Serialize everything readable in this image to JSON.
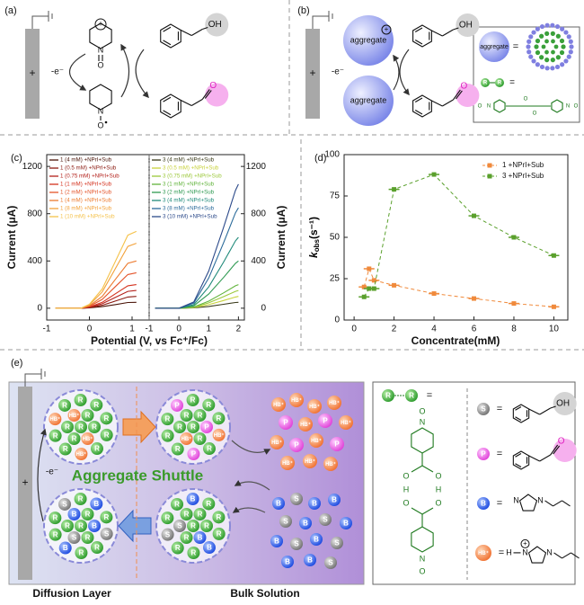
{
  "panel_a": {
    "label": "(a)",
    "plus": "+",
    "electron": "-e⁻",
    "n": "N",
    "o": "O",
    "charge": "+",
    "oh": "OH",
    "aldehyde_o": "O"
  },
  "panel_b": {
    "label": "(b)",
    "plus": "+",
    "electron": "-e⁻",
    "aggregate": "aggregate",
    "charge": "+",
    "oh": "OH",
    "aldehyde_o": "O",
    "equals": "=",
    "r": "R",
    "n": "N",
    "o": "O"
  },
  "chart_data": [
    {
      "type": "line",
      "label": "(c)",
      "xlabel": "Potential (V, vs Fc⁺/Fc)",
      "ylabel": "Current (μA)",
      "legend": "upper left",
      "yaxis_side": "left",
      "x": [
        -0.8,
        -0.2,
        0,
        0.3,
        0.6,
        0.9,
        1.1
      ],
      "xlim": [
        -1,
        1.4
      ],
      "xticks": [
        -1,
        0,
        1
      ],
      "ylim": [
        -100,
        1300
      ],
      "yticks": [
        0,
        400,
        800,
        1200
      ],
      "series": [
        {
          "name": "1 (4 mM) +NPrI+Sub",
          "color": "#4a1408",
          "values": [
            0,
            0,
            3,
            13,
            30,
            48,
            50
          ]
        },
        {
          "name": "1 (0.5 mM) +NPrI+Sub",
          "color": "#8b1a10",
          "values": [
            0,
            0,
            5,
            25,
            60,
            95,
            100
          ]
        },
        {
          "name": "1 (0.75 mM) +NPrI+Sub",
          "color": "#b3201a",
          "values": [
            0,
            0,
            8,
            38,
            90,
            143,
            150
          ]
        },
        {
          "name": "1 (1 mM) +NPrI+Sub",
          "color": "#d4321e",
          "values": [
            0,
            0,
            10,
            50,
            120,
            190,
            200
          ]
        },
        {
          "name": "1 (2 mM) +NPrI+Sub",
          "color": "#e4542a",
          "values": [
            0,
            0,
            15,
            75,
            180,
            285,
            300
          ]
        },
        {
          "name": "1 (4 mM) +NPrI+Sub",
          "color": "#ec7b30",
          "values": [
            0,
            0,
            20,
            100,
            240,
            380,
            400
          ]
        },
        {
          "name": "1 (8 mM) +NPrI+Sub",
          "color": "#f2a23a",
          "values": [
            0,
            0,
            28,
            138,
            330,
            523,
            550
          ]
        },
        {
          "name": "1 (10 mM) +NPrI+Sub",
          "color": "#f5c24a",
          "values": [
            0,
            0,
            33,
            163,
            390,
            618,
            650
          ]
        }
      ]
    },
    {
      "type": "line",
      "ylabel": "Current (μA)",
      "legend": "upper left",
      "yaxis_side": "right",
      "x": [
        -0.8,
        0,
        0.5,
        1.0,
        1.5,
        1.9,
        2.0
      ],
      "xlim": [
        -1,
        2.2
      ],
      "xticks": [
        -1,
        0,
        1,
        2
      ],
      "ylim": [
        -100,
        1300
      ],
      "yticks": [
        0,
        400,
        800,
        1200
      ],
      "series": [
        {
          "name": "3 (4 mM) +NPrI+Sub",
          "color": "#3a3a1a",
          "values": [
            0,
            0,
            3,
            15,
            33,
            48,
            50
          ]
        },
        {
          "name": "3 (0.5 mM) +NPrI+Sub",
          "color": "#c8d23c",
          "values": [
            0,
            0,
            5,
            30,
            65,
            95,
            100
          ]
        },
        {
          "name": "3 (0.75 mM) +NPrI+Sub",
          "color": "#9cc83a",
          "values": [
            0,
            0,
            8,
            45,
            98,
            143,
            150
          ]
        },
        {
          "name": "3 (1 mM) +NPrI+Sub",
          "color": "#62b43c",
          "values": [
            0,
            0,
            10,
            60,
            130,
            190,
            200
          ]
        },
        {
          "name": "3 (2 mM) +NPrI+Sub",
          "color": "#2f9a52",
          "values": [
            0,
            0,
            20,
            120,
            260,
            380,
            400
          ]
        },
        {
          "name": "3 (4 mM) +NPrI+Sub",
          "color": "#1f8a7a",
          "values": [
            0,
            0,
            30,
            180,
            390,
            570,
            600
          ]
        },
        {
          "name": "3 (8 mM) +NPrI+Sub",
          "color": "#2a6a9a",
          "values": [
            0,
            0,
            43,
            255,
            553,
            808,
            850
          ]
        },
        {
          "name": "3 (10 mM) +NPrI+Sub",
          "color": "#2c4a8a",
          "values": [
            0,
            0,
            53,
            315,
            683,
            998,
            1050
          ]
        }
      ]
    },
    {
      "type": "line",
      "label": "(d)",
      "xlabel": "Concentrate(mM)",
      "ylabel": {
        "k": "k",
        "sub": "obs",
        "unit": "(s⁻¹)"
      },
      "legend": "upper right",
      "dashed": true,
      "markers": true,
      "yaxis_side": "left",
      "x": [
        0.5,
        0.75,
        1,
        2,
        4,
        6,
        8,
        10
      ],
      "xlim": [
        -0.5,
        10.7
      ],
      "xticks": [
        0,
        2,
        4,
        6,
        8,
        10
      ],
      "ylim": [
        0,
        100
      ],
      "yticks": [
        0,
        25,
        50,
        75,
        100
      ],
      "series": [
        {
          "name": "1 +NPrI+Sub",
          "color": "#f08a3c",
          "values": [
            20,
            31,
            24,
            21,
            16,
            13,
            10,
            8
          ]
        },
        {
          "name": "3 +NPrI+Sub",
          "color": "#5aa02c",
          "values": [
            14,
            19,
            19,
            79,
            88,
            63,
            50,
            39
          ]
        }
      ]
    }
  ],
  "panel_e": {
    "label": "(e)",
    "plus": "+",
    "electron": "-e⁻",
    "title": "Aggregate Shuttle",
    "diffusion": "Diffusion Layer",
    "bulk": "Bulk Solution",
    "balls": {
      "r": "R",
      "p": "P",
      "s": "S",
      "b": "B",
      "hb": "HB⁺"
    },
    "equals": "=",
    "n": "N",
    "o": "O",
    "h": "H",
    "oh": "OH",
    "aldehyde_o": "O",
    "charge": "+"
  }
}
